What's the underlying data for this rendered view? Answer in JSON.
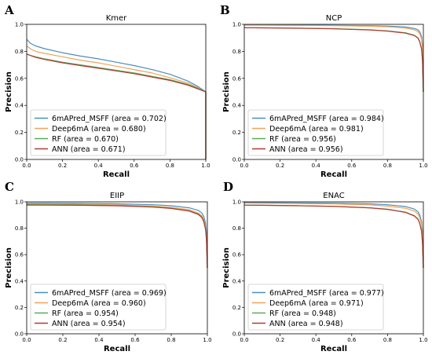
{
  "colors": {
    "6mAPred_MSFF": "#4a8fbf",
    "Deep6mA": "#f0a35a",
    "RF": "#5aaa5a",
    "ANN": "#b23a32"
  },
  "chart_data": [
    {
      "type": "line",
      "panel": "A",
      "title": "Kmer",
      "xlabel": "Recall",
      "ylabel": "Precision",
      "xlim": [
        0,
        1
      ],
      "ylim": [
        0,
        1
      ],
      "xticks": [
        "0.0",
        "0.2",
        "0.4",
        "0.6",
        "0.8",
        "1.0"
      ],
      "yticks": [
        "0.0",
        "0.2",
        "0.4",
        "0.6",
        "0.8",
        "1.0"
      ],
      "legend_position": "lower-left",
      "series": [
        {
          "name": "6mAPred_MSFF (area = 0.702)",
          "color_key": "6mAPred_MSFF",
          "x": [
            0,
            0.02,
            0.05,
            0.1,
            0.2,
            0.3,
            0.4,
            0.5,
            0.6,
            0.7,
            0.8,
            0.9,
            0.95,
            0.99,
            1.0,
            1.0
          ],
          "y": [
            0.89,
            0.86,
            0.84,
            0.82,
            0.79,
            0.765,
            0.745,
            0.72,
            0.695,
            0.665,
            0.63,
            0.58,
            0.545,
            0.51,
            0.5,
            0.0
          ]
        },
        {
          "name": "Deep6mA (area = 0.680)",
          "color_key": "Deep6mA",
          "x": [
            0,
            0.02,
            0.05,
            0.1,
            0.2,
            0.3,
            0.4,
            0.5,
            0.6,
            0.7,
            0.8,
            0.9,
            0.95,
            0.99,
            1.0,
            1.0
          ],
          "y": [
            0.84,
            0.82,
            0.8,
            0.785,
            0.76,
            0.735,
            0.715,
            0.69,
            0.665,
            0.64,
            0.605,
            0.565,
            0.535,
            0.505,
            0.5,
            0.0
          ]
        },
        {
          "name": "RF (area = 0.670)",
          "color_key": "RF",
          "x": [
            0,
            0.02,
            0.05,
            0.1,
            0.2,
            0.3,
            0.4,
            0.5,
            0.6,
            0.7,
            0.8,
            0.9,
            0.95,
            0.99,
            1.0,
            1.0
          ],
          "y": [
            0.78,
            0.77,
            0.76,
            0.745,
            0.72,
            0.7,
            0.68,
            0.66,
            0.64,
            0.615,
            0.59,
            0.555,
            0.53,
            0.505,
            0.5,
            0.0
          ]
        },
        {
          "name": "ANN (area = 0.671)",
          "color_key": "ANN",
          "x": [
            0,
            0.02,
            0.05,
            0.1,
            0.2,
            0.3,
            0.4,
            0.5,
            0.6,
            0.7,
            0.8,
            0.9,
            0.95,
            0.99,
            1.0,
            1.0
          ],
          "y": [
            0.78,
            0.77,
            0.755,
            0.74,
            0.715,
            0.695,
            0.675,
            0.655,
            0.635,
            0.61,
            0.585,
            0.55,
            0.525,
            0.505,
            0.5,
            0.0
          ]
        }
      ]
    },
    {
      "type": "line",
      "panel": "B",
      "title": "NCP",
      "xlabel": "Recall",
      "ylabel": "Precision",
      "xlim": [
        0,
        1
      ],
      "ylim": [
        0,
        1
      ],
      "xticks": [
        "0.0",
        "0.2",
        "0.4",
        "0.6",
        "0.8",
        "1.0"
      ],
      "yticks": [
        "0.0",
        "0.2",
        "0.4",
        "0.6",
        "0.8",
        "1.0"
      ],
      "legend_position": "lower-left",
      "series": [
        {
          "name": "6mAPred_MSFF (area = 0.984)",
          "color_key": "6mAPred_MSFF",
          "x": [
            0,
            0.1,
            0.3,
            0.5,
            0.7,
            0.8,
            0.9,
            0.95,
            0.97,
            0.98,
            0.99,
            0.995,
            1.0
          ],
          "y": [
            0.995,
            0.995,
            0.994,
            0.993,
            0.99,
            0.987,
            0.98,
            0.97,
            0.96,
            0.945,
            0.91,
            0.85,
            0.5
          ]
        },
        {
          "name": "Deep6mA (area = 0.981)",
          "color_key": "Deep6mA",
          "x": [
            0,
            0.1,
            0.3,
            0.5,
            0.7,
            0.8,
            0.9,
            0.95,
            0.97,
            0.98,
            0.99,
            0.995,
            1.0
          ],
          "y": [
            0.993,
            0.993,
            0.992,
            0.99,
            0.986,
            0.982,
            0.973,
            0.96,
            0.947,
            0.93,
            0.89,
            0.82,
            0.5
          ]
        },
        {
          "name": "RF (area = 0.956)",
          "color_key": "RF",
          "x": [
            0,
            0.1,
            0.3,
            0.5,
            0.7,
            0.8,
            0.9,
            0.95,
            0.97,
            0.98,
            0.99,
            0.995,
            1.0
          ],
          "y": [
            0.975,
            0.975,
            0.972,
            0.968,
            0.96,
            0.952,
            0.938,
            0.92,
            0.9,
            0.875,
            0.82,
            0.74,
            0.5
          ]
        },
        {
          "name": "ANN (area = 0.956)",
          "color_key": "ANN",
          "x": [
            0,
            0.1,
            0.3,
            0.5,
            0.7,
            0.8,
            0.9,
            0.95,
            0.97,
            0.98,
            0.99,
            0.995,
            1.0
          ],
          "y": [
            0.975,
            0.974,
            0.971,
            0.967,
            0.958,
            0.95,
            0.935,
            0.917,
            0.897,
            0.87,
            0.815,
            0.73,
            0.5
          ]
        }
      ]
    },
    {
      "type": "line",
      "panel": "C",
      "title": "EIIP",
      "xlabel": "Recall",
      "ylabel": "Precision",
      "xlim": [
        0,
        1
      ],
      "ylim": [
        0,
        1
      ],
      "xticks": [
        "0.0",
        "0.2",
        "0.4",
        "0.6",
        "0.8",
        "1.0"
      ],
      "yticks": [
        "0.0",
        "0.2",
        "0.4",
        "0.6",
        "0.8",
        "1.0"
      ],
      "legend_position": "lower-left",
      "series": [
        {
          "name": "6mAPred_MSFF (area = 0.969)",
          "color_key": "6mAPred_MSFF",
          "x": [
            0,
            0.1,
            0.3,
            0.5,
            0.7,
            0.8,
            0.9,
            0.95,
            0.97,
            0.98,
            0.99,
            0.995,
            1.0
          ],
          "y": [
            0.99,
            0.99,
            0.988,
            0.985,
            0.978,
            0.97,
            0.955,
            0.935,
            0.915,
            0.89,
            0.84,
            0.77,
            0.5
          ]
        },
        {
          "name": "Deep6mA (area = 0.960)",
          "color_key": "Deep6mA",
          "x": [
            0,
            0.1,
            0.3,
            0.5,
            0.7,
            0.8,
            0.9,
            0.95,
            0.97,
            0.98,
            0.99,
            0.995,
            1.0
          ],
          "y": [
            0.985,
            0.984,
            0.981,
            0.977,
            0.968,
            0.958,
            0.94,
            0.915,
            0.895,
            0.865,
            0.81,
            0.73,
            0.5
          ]
        },
        {
          "name": "RF (area = 0.954)",
          "color_key": "RF",
          "x": [
            0,
            0.1,
            0.3,
            0.5,
            0.7,
            0.8,
            0.9,
            0.95,
            0.97,
            0.98,
            0.99,
            0.995,
            1.0
          ],
          "y": [
            0.98,
            0.979,
            0.976,
            0.972,
            0.962,
            0.952,
            0.932,
            0.908,
            0.885,
            0.855,
            0.8,
            0.72,
            0.5
          ]
        },
        {
          "name": "ANN (area = 0.954)",
          "color_key": "ANN",
          "x": [
            0,
            0.1,
            0.3,
            0.5,
            0.7,
            0.8,
            0.9,
            0.95,
            0.97,
            0.98,
            0.99,
            0.995,
            1.0
          ],
          "y": [
            0.975,
            0.975,
            0.974,
            0.97,
            0.96,
            0.95,
            0.93,
            0.905,
            0.88,
            0.85,
            0.79,
            0.71,
            0.5
          ]
        }
      ]
    },
    {
      "type": "line",
      "panel": "D",
      "title": "ENAC",
      "xlabel": "Recall",
      "ylabel": "Precision",
      "xlim": [
        0,
        1
      ],
      "ylim": [
        0,
        1
      ],
      "xticks": [
        "0.0",
        "0.2",
        "0.4",
        "0.6",
        "0.8",
        "1.0"
      ],
      "yticks": [
        "0.0",
        "0.2",
        "0.4",
        "0.6",
        "0.8",
        "1.0"
      ],
      "legend_position": "lower-left",
      "series": [
        {
          "name": "6mAPred_MSFF (area = 0.977)",
          "color_key": "6mAPred_MSFF",
          "x": [
            0,
            0.1,
            0.3,
            0.5,
            0.7,
            0.8,
            0.9,
            0.95,
            0.97,
            0.98,
            0.99,
            0.995,
            1.0
          ],
          "y": [
            0.995,
            0.994,
            0.992,
            0.99,
            0.985,
            0.978,
            0.965,
            0.945,
            0.925,
            0.9,
            0.85,
            0.78,
            0.5
          ]
        },
        {
          "name": "Deep6mA (area = 0.971)",
          "color_key": "Deep6mA",
          "x": [
            0,
            0.1,
            0.3,
            0.5,
            0.7,
            0.8,
            0.9,
            0.95,
            0.97,
            0.98,
            0.99,
            0.995,
            1.0
          ],
          "y": [
            0.99,
            0.989,
            0.987,
            0.984,
            0.977,
            0.968,
            0.952,
            0.93,
            0.908,
            0.88,
            0.83,
            0.75,
            0.5
          ]
        },
        {
          "name": "RF (area = 0.948)",
          "color_key": "RF",
          "x": [
            0,
            0.1,
            0.3,
            0.5,
            0.7,
            0.8,
            0.9,
            0.95,
            0.97,
            0.98,
            0.99,
            0.995,
            1.0
          ],
          "y": [
            0.975,
            0.974,
            0.97,
            0.965,
            0.955,
            0.944,
            0.922,
            0.895,
            0.87,
            0.84,
            0.78,
            0.7,
            0.5
          ]
        },
        {
          "name": "ANN (area = 0.948)",
          "color_key": "ANN",
          "x": [
            0,
            0.1,
            0.3,
            0.5,
            0.7,
            0.8,
            0.9,
            0.95,
            0.97,
            0.98,
            0.99,
            0.995,
            1.0
          ],
          "y": [
            0.975,
            0.974,
            0.971,
            0.966,
            0.955,
            0.943,
            0.92,
            0.892,
            0.867,
            0.835,
            0.775,
            0.69,
            0.5
          ]
        }
      ]
    }
  ]
}
